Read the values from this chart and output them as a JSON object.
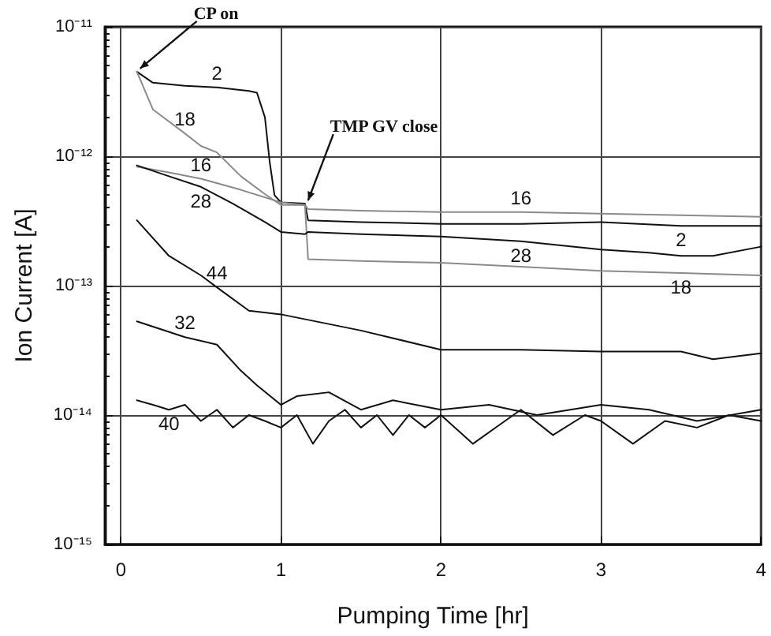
{
  "chart_data": {
    "type": "line",
    "xlabel": "Pumping Time [hr]",
    "ylabel": "Ion Current [A]",
    "log": "y",
    "grid": true,
    "legend": false,
    "marker": "none",
    "xlim": [
      -0.1,
      4
    ],
    "xticks": [
      0,
      1,
      2,
      3,
      4
    ],
    "ylim": [
      1e-15,
      1e-11
    ],
    "yticks": [
      {
        "value": 1e-15,
        "label": "10⁻¹⁵"
      },
      {
        "value": 1e-14,
        "label": "10⁻¹⁴"
      },
      {
        "value": 1e-13,
        "label": "10⁻¹³"
      },
      {
        "value": 1e-12,
        "label": "10⁻¹²"
      },
      {
        "value": 1e-11,
        "label": "10⁻¹¹"
      }
    ],
    "annotations": [
      {
        "text": "CP on",
        "x": 0.1,
        "y": 4.5e-12
      },
      {
        "text": "TMP GV close",
        "x": 1.15,
        "y": 4.3e-13
      }
    ],
    "series": [
      {
        "name": "2",
        "color": "#111111",
        "x": [
          0.1,
          0.2,
          0.4,
          0.6,
          0.8,
          0.85,
          0.9,
          0.93,
          0.96,
          1.0,
          1.15,
          1.17,
          1.5,
          2,
          2.5,
          3,
          3.5,
          4
        ],
        "values": [
          4.5e-12,
          3.7e-12,
          3.5e-12,
          3.4e-12,
          3.2e-12,
          3.1e-12,
          2e-12,
          9e-13,
          5e-13,
          4.4e-13,
          4.3e-13,
          3.2e-13,
          3.1e-13,
          3e-13,
          3e-13,
          3.1e-13,
          2.9e-13,
          2.9e-13
        ]
      },
      {
        "name": "18",
        "color": "#8a8a8a",
        "x": [
          0.1,
          0.2,
          0.4,
          0.5,
          0.6,
          0.75,
          0.9,
          1.0,
          1.15,
          1.17,
          1.5,
          2,
          2.5,
          3,
          3.5,
          4
        ],
        "values": [
          4.5e-12,
          2.3e-12,
          1.5e-12,
          1.2e-12,
          1.07e-12,
          7e-13,
          5.1e-13,
          4.2e-13,
          4.2e-13,
          1.6e-13,
          1.55e-13,
          1.5e-13,
          1.4e-13,
          1.3e-13,
          1.25e-13,
          1.2e-13
        ]
      },
      {
        "name": "16",
        "color": "#8a8a8a",
        "x": [
          0.1,
          0.3,
          0.5,
          0.75,
          1.0,
          1.15,
          1.17,
          1.5,
          2,
          2.5,
          3,
          3.5,
          4
        ],
        "values": [
          8.3e-13,
          7.5e-13,
          6.7e-13,
          5.5e-13,
          4.4e-13,
          4.2e-13,
          3.9e-13,
          3.8e-13,
          3.7e-13,
          3.7e-13,
          3.6e-13,
          3.5e-13,
          3.4e-13
        ]
      },
      {
        "name": "28",
        "color": "#111111",
        "x": [
          0.1,
          0.3,
          0.5,
          0.7,
          0.9,
          1.0,
          1.15,
          1.17,
          1.5,
          2,
          2.5,
          3,
          3.3,
          3.5,
          3.7,
          4
        ],
        "values": [
          8.5e-13,
          7e-13,
          5.8e-13,
          4.3e-13,
          3.1e-13,
          2.6e-13,
          2.5e-13,
          2.6e-13,
          2.5e-13,
          2.4e-13,
          2.2e-13,
          1.9e-13,
          1.8e-13,
          1.7e-13,
          1.7e-13,
          2e-13
        ]
      },
      {
        "name": "44",
        "color": "#111111",
        "x": [
          0.1,
          0.3,
          0.5,
          0.6,
          0.8,
          1.0,
          1.5,
          2,
          2.5,
          3,
          3.5,
          3.7,
          4
        ],
        "values": [
          3.2e-13,
          1.7e-13,
          1.2e-13,
          9.7e-14,
          6.4e-14,
          6e-14,
          4.5e-14,
          3.2e-14,
          3.2e-14,
          3.1e-14,
          3.1e-14,
          2.7e-14,
          3e-14
        ]
      },
      {
        "name": "32",
        "color": "#111111",
        "x": [
          0.1,
          0.4,
          0.6,
          0.75,
          0.85,
          1.0,
          1.1,
          1.3,
          1.5,
          1.7,
          2,
          2.3,
          2.6,
          3,
          3.3,
          3.6,
          4
        ],
        "values": [
          5.3e-14,
          4e-14,
          3.5e-14,
          2.2e-14,
          1.7e-14,
          1.2e-14,
          1.4e-14,
          1.5e-14,
          1.1e-14,
          1.3e-14,
          1.1e-14,
          1.2e-14,
          1e-14,
          1.2e-14,
          1.1e-14,
          9e-15,
          1.1e-14
        ]
      },
      {
        "name": "40",
        "color": "#111111",
        "x": [
          0.1,
          0.2,
          0.3,
          0.4,
          0.5,
          0.6,
          0.7,
          0.8,
          0.9,
          1.0,
          1.1,
          1.2,
          1.3,
          1.4,
          1.5,
          1.6,
          1.7,
          1.8,
          1.9,
          2.0,
          2.2,
          2.4,
          2.5,
          2.7,
          2.9,
          3.0,
          3.2,
          3.4,
          3.6,
          3.8,
          4.0
        ],
        "values": [
          1.3e-14,
          1.2e-14,
          1.1e-14,
          1.2e-14,
          9e-15,
          1.1e-14,
          8e-15,
          1e-14,
          9e-15,
          8e-15,
          1e-14,
          6e-15,
          9e-15,
          1.1e-14,
          8e-15,
          1e-14,
          7e-15,
          1e-14,
          8e-15,
          1e-14,
          6e-15,
          9e-15,
          1.1e-14,
          7e-15,
          1e-14,
          9e-15,
          6e-15,
          9e-15,
          8e-15,
          1e-14,
          9e-15
        ]
      }
    ]
  }
}
